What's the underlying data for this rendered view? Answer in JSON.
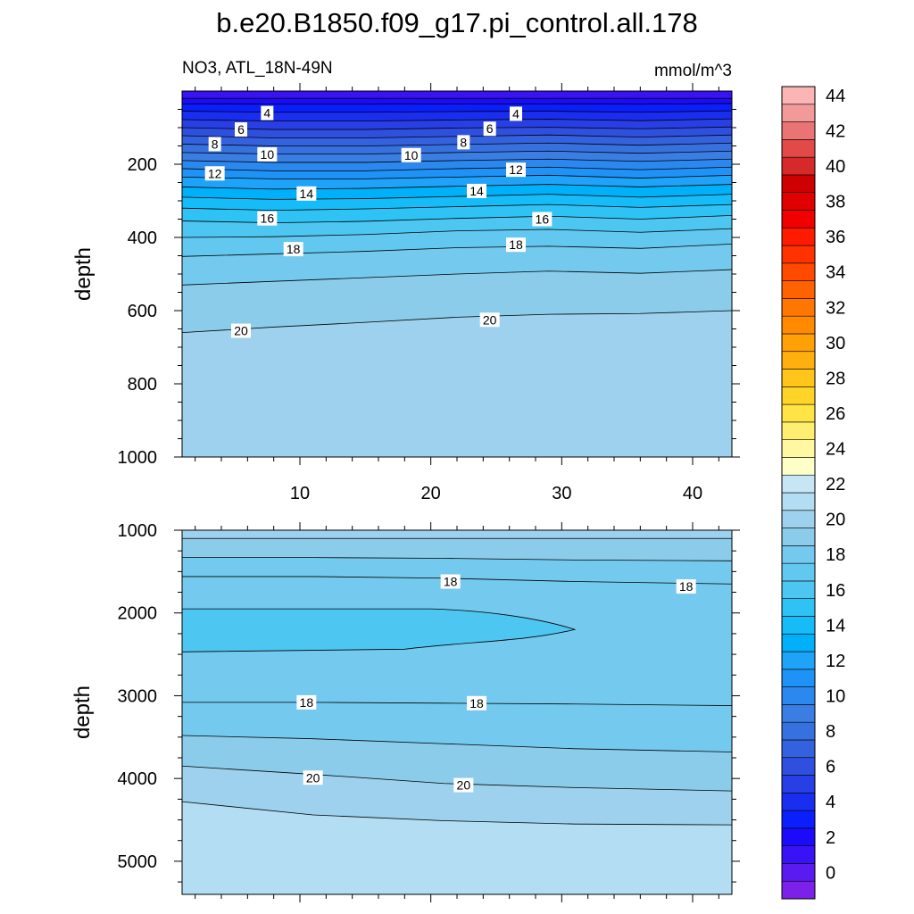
{
  "figure": {
    "title": "b.e20.B1850.f09_g17.pi_control.all.178",
    "left_subtitle": "NO3, ATL_18N-49N",
    "right_subtitle": "mmol/m^3"
  },
  "chart_data": [
    {
      "type": "contour",
      "panel": "upper",
      "variable": "NO3",
      "region": "ATL_18N-49N",
      "units": "mmol/m^3",
      "xlim": [
        1,
        43
      ],
      "ylim": [
        1000,
        0
      ],
      "xticks": [
        10,
        20,
        30,
        40
      ],
      "yticks": [
        200,
        400,
        600,
        800,
        1000
      ],
      "xlabel": "",
      "ylabel": "depth",
      "contour_interval": 1,
      "contours": [
        {
          "level": 2,
          "depths": [
            20,
            20,
            20,
            20,
            20,
            20,
            20
          ]
        },
        {
          "level": 3,
          "depths": [
            35,
            36,
            36,
            35,
            35,
            36,
            34
          ]
        },
        {
          "level": 4,
          "depths": [
            55,
            58,
            58,
            56,
            55,
            58,
            54
          ]
        },
        {
          "level": 5,
          "depths": [
            78,
            82,
            82,
            79,
            77,
            81,
            76
          ]
        },
        {
          "level": 6,
          "depths": [
            100,
            105,
            105,
            101,
            99,
            103,
            98
          ]
        },
        {
          "level": 7,
          "depths": [
            122,
            128,
            128,
            124,
            120,
            126,
            120
          ]
        },
        {
          "level": 8,
          "depths": [
            145,
            150,
            150,
            146,
            142,
            148,
            142
          ]
        },
        {
          "level": 9,
          "depths": [
            168,
            172,
            172,
            168,
            164,
            170,
            164
          ]
        },
        {
          "level": 10,
          "depths": [
            190,
            195,
            195,
            190,
            186,
            192,
            186
          ]
        },
        {
          "level": 11,
          "depths": [
            212,
            218,
            218,
            212,
            208,
            215,
            208
          ]
        },
        {
          "level": 12,
          "depths": [
            235,
            240,
            240,
            235,
            230,
            238,
            230
          ]
        },
        {
          "level": 13,
          "depths": [
            262,
            268,
            266,
            260,
            255,
            262,
            255
          ]
        },
        {
          "level": 14,
          "depths": [
            290,
            296,
            294,
            288,
            282,
            290,
            282
          ]
        },
        {
          "level": 15,
          "depths": [
            320,
            326,
            322,
            316,
            310,
            318,
            310
          ]
        },
        {
          "level": 16,
          "depths": [
            355,
            360,
            356,
            348,
            342,
            350,
            340
          ]
        },
        {
          "level": 17,
          "depths": [
            400,
            398,
            392,
            382,
            378,
            386,
            376
          ]
        },
        {
          "level": 18,
          "depths": [
            452,
            445,
            438,
            428,
            424,
            430,
            418
          ]
        },
        {
          "level": 19,
          "depths": [
            530,
            520,
            510,
            500,
            492,
            498,
            488
          ]
        },
        {
          "level": 20,
          "depths": [
            660,
            645,
            632,
            618,
            610,
            608,
            600
          ]
        }
      ],
      "x_nodes": [
        1,
        8,
        15,
        22,
        29,
        36,
        43
      ],
      "labels": [
        {
          "value": "4",
          "x": 7.5,
          "depth": 60
        },
        {
          "value": "4",
          "x": 26.5,
          "depth": 62
        },
        {
          "value": "6",
          "x": 5.5,
          "depth": 105
        },
        {
          "value": "6",
          "x": 24.5,
          "depth": 103
        },
        {
          "value": "8",
          "x": 3.5,
          "depth": 145
        },
        {
          "value": "8",
          "x": 22.5,
          "depth": 140
        },
        {
          "value": "10",
          "x": 7.5,
          "depth": 173
        },
        {
          "value": "10",
          "x": 18.5,
          "depth": 175
        },
        {
          "value": "12",
          "x": 3.5,
          "depth": 225
        },
        {
          "value": "12",
          "x": 26.5,
          "depth": 215
        },
        {
          "value": "14",
          "x": 10.5,
          "depth": 280
        },
        {
          "value": "14",
          "x": 23.5,
          "depth": 273
        },
        {
          "value": "16",
          "x": 7.5,
          "depth": 348
        },
        {
          "value": "16",
          "x": 28.5,
          "depth": 350
        },
        {
          "value": "18",
          "x": 9.5,
          "depth": 432
        },
        {
          "value": "18",
          "x": 26.5,
          "depth": 420
        },
        {
          "value": "20",
          "x": 5.5,
          "depth": 655
        },
        {
          "value": "20",
          "x": 24.5,
          "depth": 625
        }
      ]
    },
    {
      "type": "contour",
      "panel": "lower",
      "variable": "NO3",
      "region": "ATL_18N-49N",
      "units": "mmol/m^3",
      "xlim": [
        1,
        43
      ],
      "ylim": [
        5400,
        1000
      ],
      "xticks": [
        10,
        20,
        30,
        40
      ],
      "yticks": [
        1000,
        2000,
        3000,
        4000,
        5000
      ],
      "xlabel": "",
      "ylabel": "depth",
      "contour_interval": 1,
      "contours": [
        {
          "level": 20,
          "depths": [
            1100,
            1100,
            1100,
            1100,
            1100
          ]
        },
        {
          "level": 19,
          "depths": [
            1330,
            1330,
            1340,
            1360,
            1370
          ]
        },
        {
          "level": 18,
          "depths": [
            1560,
            1560,
            1580,
            1620,
            1650
          ]
        },
        {
          "level": 17,
          "lens": true,
          "top_depth": 1950,
          "bottom_depth": 2470,
          "tip_x": 31,
          "tip_depth": 2200
        },
        {
          "level": 18,
          "depths": [
            3080,
            3080,
            3090,
            3100,
            3120
          ]
        },
        {
          "level": 19,
          "depths": [
            3480,
            3520,
            3580,
            3640,
            3680
          ]
        },
        {
          "level": 20,
          "depths": [
            3850,
            3950,
            4060,
            4110,
            4150
          ]
        },
        {
          "level": 21,
          "depths": [
            4280,
            4440,
            4510,
            4550,
            4560
          ]
        }
      ],
      "x_nodes": [
        1,
        11,
        21,
        31,
        43
      ],
      "labels": [
        {
          "value": "18",
          "x": 21.5,
          "depth": 1620
        },
        {
          "value": "18",
          "x": 39.5,
          "depth": 1680
        },
        {
          "value": "18",
          "x": 10.5,
          "depth": 3080
        },
        {
          "value": "18",
          "x": 23.5,
          "depth": 3090
        },
        {
          "value": "20",
          "x": 11,
          "depth": 3990
        },
        {
          "value": "20",
          "x": 22.5,
          "depth": 4080
        }
      ]
    }
  ],
  "colorbar": {
    "labels": [
      "0",
      "2",
      "4",
      "6",
      "8",
      "10",
      "12",
      "14",
      "16",
      "18",
      "20",
      "22",
      "24",
      "26",
      "28",
      "30",
      "32",
      "34",
      "36",
      "38",
      "40",
      "42",
      "44"
    ],
    "bins": [
      "#7b21e8",
      "#5a1bf0",
      "#3a12f6",
      "#1c0bfb",
      "#0a1ffc",
      "#1a2ef0",
      "#283fe5",
      "#2f50df",
      "#3461de",
      "#3771df",
      "#3a7ee3",
      "#2a88ef",
      "#1e92f6",
      "#1ea3f8",
      "#00b0f8",
      "#16bcf8",
      "#2fc3f5",
      "#4ec6f2",
      "#63c8f0",
      "#74c9ee",
      "#8bcceb",
      "#9dd1ed",
      "#b2ddf2",
      "#c6e6f5",
      "#ffffc8",
      "#fff8a0",
      "#ffef70",
      "#ffe445",
      "#ffd428",
      "#ffc51a",
      "#ffb00e",
      "#ffa006",
      "#ff8a00",
      "#ff7600",
      "#ff6200",
      "#ff4a00",
      "#ff3200",
      "#ff1a00",
      "#f20000",
      "#e00000",
      "#cf0000",
      "#d62a2a",
      "#e24a4a",
      "#ea7373",
      "#f29a9a",
      "#fbb5b5"
    ]
  }
}
